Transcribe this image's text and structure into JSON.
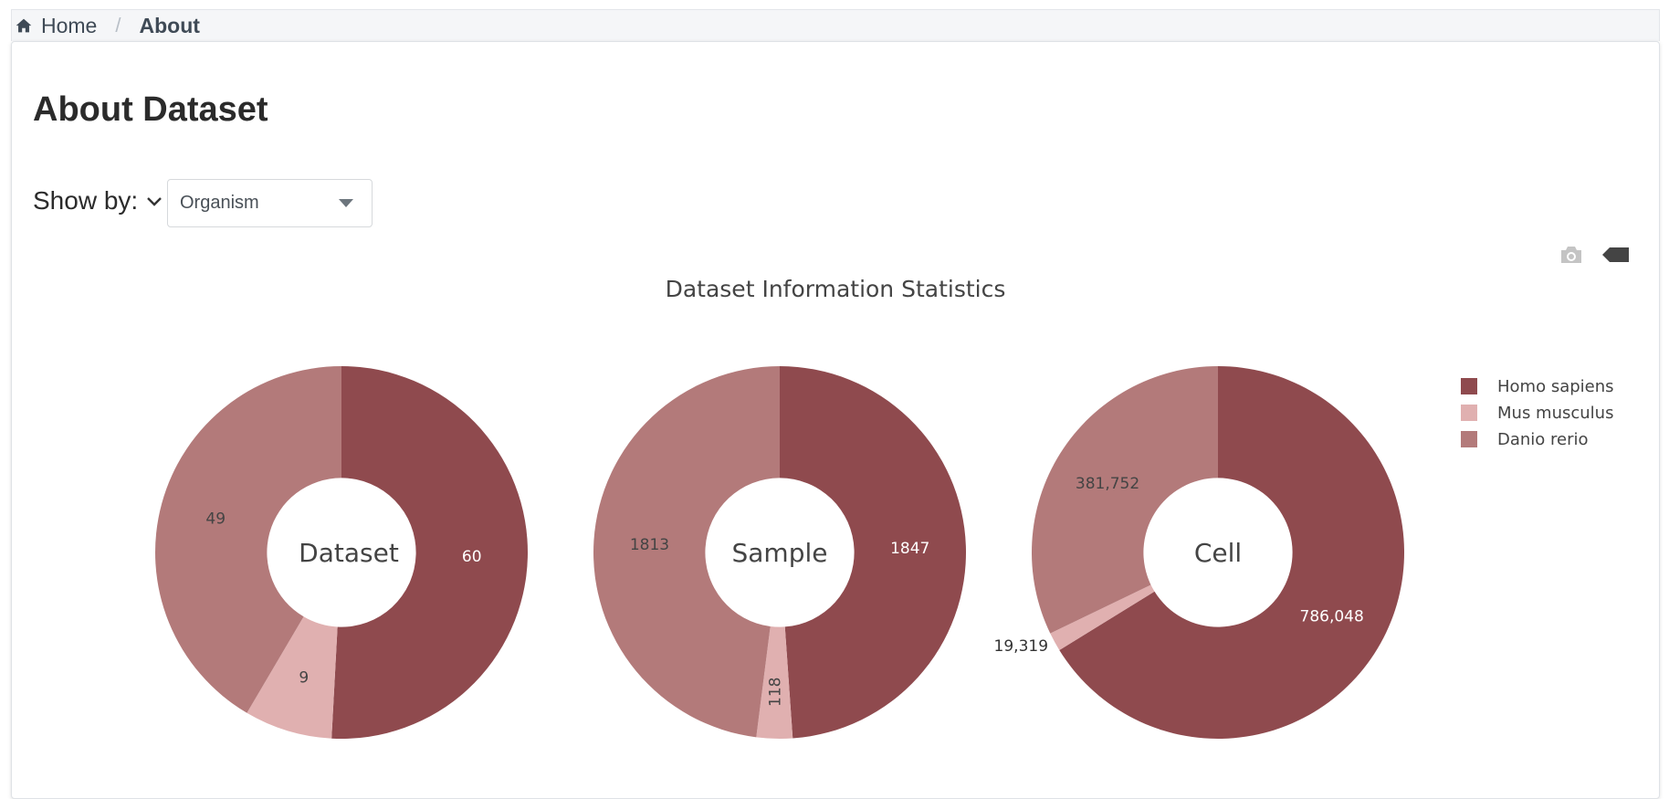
{
  "breadcrumb": {
    "home": "Home",
    "current": "About"
  },
  "page": {
    "title": "About Dataset"
  },
  "controls": {
    "show_by_label": "Show by:",
    "select_value": "Organism"
  },
  "modebar": {
    "icons": [
      "camera-icon",
      "tag-icon"
    ]
  },
  "chart_data": {
    "type": "pie",
    "title": "Dataset Information Statistics",
    "series_names": [
      "Homo sapiens",
      "Mus musculus",
      "Danio rerio"
    ],
    "colors": [
      "#8f4a4e",
      "#e0b0b0",
      "#b37a7a"
    ],
    "legend_position": "top-right",
    "hole": 0.4,
    "pies": [
      {
        "name": "Dataset",
        "values": [
          60,
          9,
          49
        ],
        "labels": [
          "60",
          "9",
          "49"
        ]
      },
      {
        "name": "Sample",
        "values": [
          1847,
          118,
          1813
        ],
        "labels": [
          "1847",
          "118",
          "1813"
        ]
      },
      {
        "name": "Cell",
        "values": [
          786048,
          19319,
          381752
        ],
        "labels": [
          "786,048",
          "19,319",
          "381,752"
        ]
      }
    ]
  }
}
